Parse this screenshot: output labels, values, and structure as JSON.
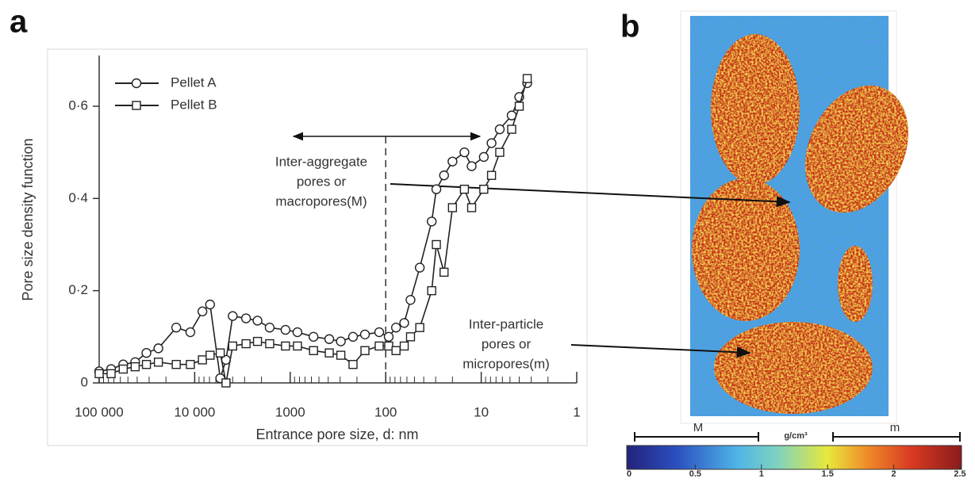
{
  "chart_data": {
    "type": "line",
    "panel_label": "a",
    "xlabel": "Entrance pore size, d: nm",
    "ylabel": "Pore size density function",
    "xscale": "log",
    "xinvert": true,
    "minor_ticks": true,
    "xlim": [
      100000,
      1
    ],
    "xticks": [
      {
        "value": 100000,
        "label": "100 000"
      },
      {
        "value": 10000,
        "label": "10 000"
      },
      1000,
      100,
      10,
      1
    ],
    "ylim": [
      0,
      0.71
    ],
    "yticks": [
      0,
      {
        "value": 0.2,
        "label": "0·2"
      },
      {
        "value": 0.4,
        "label": "0·4"
      },
      {
        "value": 0.6,
        "label": "0·6"
      }
    ],
    "legend": "upper left",
    "divider_x": 100,
    "x": [
      100000,
      75000,
      56000,
      42000,
      32000,
      24000,
      15600,
      11100,
      8300,
      6900,
      5400,
      4700,
      4000,
      2900,
      2200,
      1640,
      1120,
      840,
      570,
      390,
      295,
      220,
      165,
      117,
      93,
      78,
      64,
      55,
      44,
      33,
      29.5,
      24.5,
      20,
      15,
      12.6,
      9.4,
      7.8,
      6.4,
      4.8,
      4.0,
      3.3
    ],
    "series": [
      {
        "name": "Pellet A",
        "color": "#222222",
        "marker": "circle",
        "values": [
          0.025,
          0.03,
          0.04,
          0.045,
          0.065,
          0.075,
          0.12,
          0.11,
          0.155,
          0.17,
          0.01,
          0.05,
          0.145,
          0.14,
          0.135,
          0.12,
          0.115,
          0.11,
          0.1,
          0.095,
          0.09,
          0.1,
          0.105,
          0.11,
          0.1,
          0.12,
          0.13,
          0.18,
          0.25,
          0.35,
          0.42,
          0.45,
          0.48,
          0.5,
          0.47,
          0.49,
          0.52,
          0.55,
          0.58,
          0.62,
          0.65
        ]
      },
      {
        "name": "Pellet B",
        "color": "#222222",
        "marker": "square",
        "values": [
          0.02,
          0.02,
          0.03,
          0.035,
          0.04,
          0.045,
          0.04,
          0.04,
          0.05,
          0.06,
          0.065,
          0.0,
          0.08,
          0.085,
          0.09,
          0.085,
          0.08,
          0.08,
          0.07,
          0.065,
          0.06,
          0.04,
          0.07,
          0.08,
          0.08,
          0.07,
          0.08,
          0.1,
          0.12,
          0.2,
          0.3,
          0.24,
          0.38,
          0.42,
          0.38,
          0.42,
          0.45,
          0.5,
          0.55,
          0.6,
          0.66
        ]
      }
    ],
    "annotations": [
      {
        "lines": [
          "Inter-aggregate",
          "pores or",
          "macropores(M)"
        ]
      },
      {
        "lines": [
          "Inter-particle",
          "pores or",
          "micropores(m)"
        ]
      }
    ]
  },
  "panel_b": {
    "panel_label": "b",
    "colorbar": {
      "unit": "g/cm³",
      "lim": [
        0,
        2.5
      ],
      "ticks": [
        0,
        0.5,
        1,
        1.5,
        2,
        2.5
      ]
    },
    "range_labels": [
      "M",
      "m"
    ]
  }
}
